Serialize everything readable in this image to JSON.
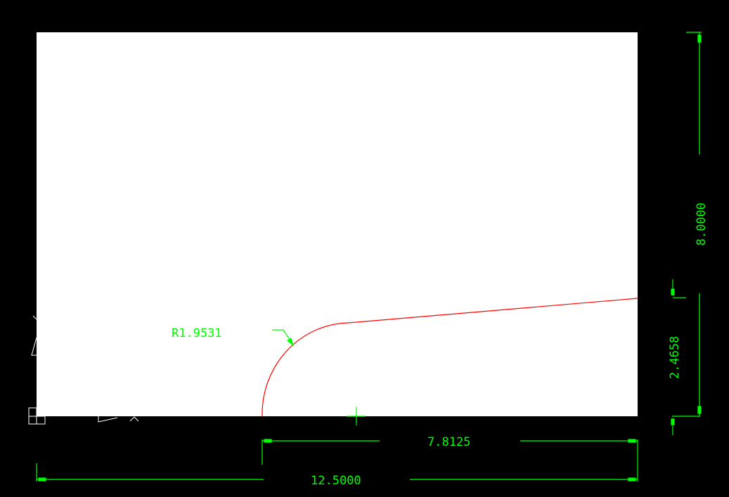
{
  "colors": {
    "background": "#000000",
    "sheet": "#ffffff",
    "profile": "#ff0000",
    "dimension": "#00ff00",
    "ucs_icon": "#ffffff"
  },
  "dimensions": {
    "radius": "R1.9531",
    "overall_height": "8.0000",
    "right_height": "2.4658",
    "partial_width": "7.8125",
    "overall_width": "12.5000"
  },
  "icons": [
    "ucs-icon",
    "crosshair-icon"
  ]
}
